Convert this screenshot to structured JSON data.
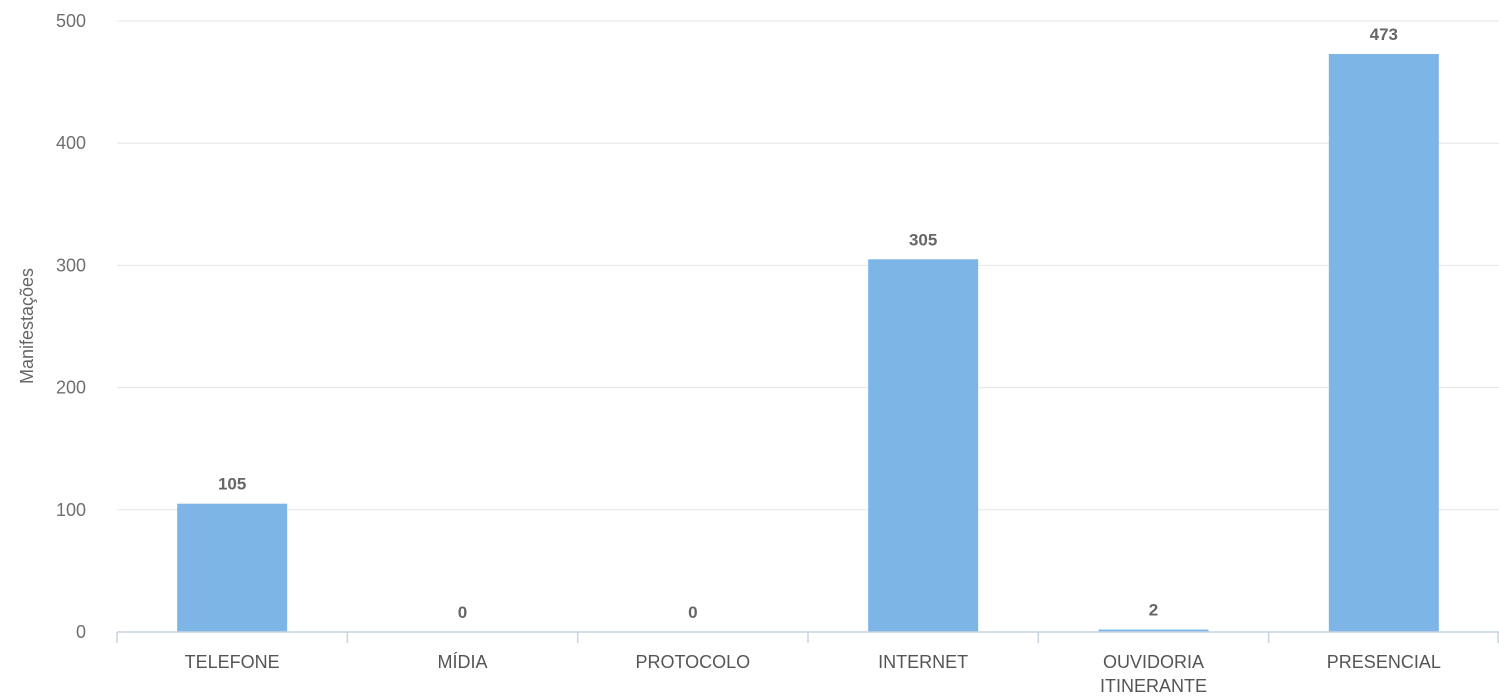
{
  "chart_data": {
    "type": "bar",
    "categories": [
      [
        "TELEFONE"
      ],
      [
        "MÍDIA"
      ],
      [
        "PROTOCOLO"
      ],
      [
        "INTERNET"
      ],
      [
        "OUVIDORIA",
        "ITINERANTE"
      ],
      [
        "PRESENCIAL"
      ]
    ],
    "values": [
      105,
      0,
      0,
      305,
      2,
      473
    ],
    "data_labels": [
      "105",
      "0",
      "0",
      "305",
      "2",
      "473"
    ],
    "ylabel": "Manifestações",
    "ylim": [
      0,
      500
    ],
    "yticks": [
      0,
      100,
      200,
      300,
      400,
      500
    ],
    "grid": true,
    "legend": "none",
    "bar_color": "#7cb5e6"
  }
}
